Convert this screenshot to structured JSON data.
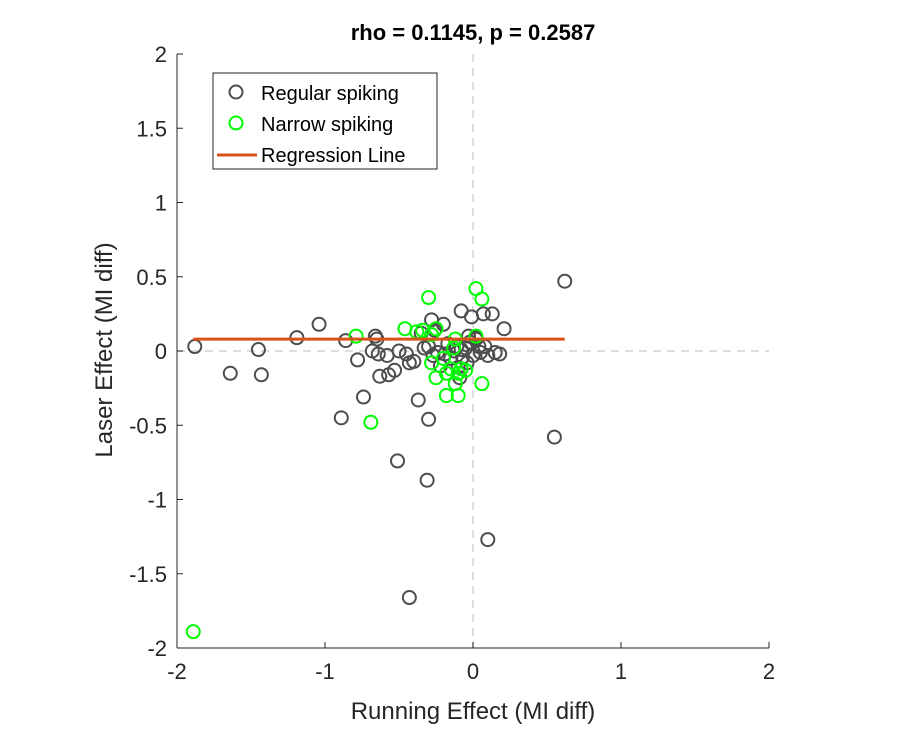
{
  "chart_data": {
    "type": "scatter",
    "title": "rho = 0.1145, p = 0.2587",
    "xlabel": "Running Effect (MI diff)",
    "ylabel": "Laser Effect (MI diff)",
    "xlim": [
      -2,
      2
    ],
    "ylim": [
      -2,
      2
    ],
    "xticks": [
      -2,
      -1,
      0,
      1,
      2
    ],
    "xtick_labels": [
      "-2",
      "-1",
      "0",
      "1",
      "2"
    ],
    "yticks": [
      -2,
      -1.5,
      -1,
      -0.5,
      0,
      0.5,
      1,
      1.5,
      2
    ],
    "ytick_labels": [
      "-2",
      "-1.5",
      "-1",
      "-0.5",
      "0",
      "0.5",
      "1",
      "1.5",
      "2"
    ],
    "grid": false,
    "legend_position": "top-left",
    "reference_lines": [
      {
        "orientation": "vertical",
        "value": 0,
        "style": "dashed",
        "color": "#d0d4d8"
      },
      {
        "orientation": "horizontal",
        "value": 0,
        "style": "dashed",
        "color": "#d0d4d8"
      }
    ],
    "series": [
      {
        "name": "Regular spiking",
        "marker": "open-circle",
        "color": "#4d4d4d",
        "points": [
          [
            -1.88,
            0.03
          ],
          [
            -1.64,
            -0.15
          ],
          [
            -1.45,
            0.01
          ],
          [
            -1.43,
            -0.16
          ],
          [
            -1.19,
            0.09
          ],
          [
            -1.04,
            0.18
          ],
          [
            -0.86,
            0.07
          ],
          [
            -0.78,
            -0.06
          ],
          [
            -0.74,
            -0.31
          ],
          [
            -0.89,
            -0.45
          ],
          [
            -0.68,
            0.0
          ],
          [
            -0.66,
            0.1
          ],
          [
            -0.65,
            0.08
          ],
          [
            -0.64,
            -0.02
          ],
          [
            -0.63,
            -0.17
          ],
          [
            -0.58,
            -0.03
          ],
          [
            -0.57,
            -0.16
          ],
          [
            -0.53,
            -0.13
          ],
          [
            -0.5,
            0.0
          ],
          [
            -0.45,
            -0.02
          ],
          [
            -0.43,
            -0.08
          ],
          [
            -0.4,
            -0.07
          ],
          [
            -0.37,
            -0.33
          ],
          [
            -0.35,
            0.12
          ],
          [
            -0.33,
            0.02
          ],
          [
            -0.3,
            0.03
          ],
          [
            -0.28,
            0.21
          ],
          [
            -0.27,
            -0.03
          ],
          [
            -0.26,
            0.14
          ],
          [
            -0.24,
            -0.01
          ],
          [
            -0.22,
            -0.1
          ],
          [
            -0.2,
            0.18
          ],
          [
            -0.19,
            -0.02
          ],
          [
            -0.17,
            0.05
          ],
          [
            -0.15,
            -0.05
          ],
          [
            -0.13,
            0.0
          ],
          [
            -0.11,
            0.03
          ],
          [
            -0.1,
            -0.11
          ],
          [
            -0.08,
            0.01
          ],
          [
            -0.08,
            0.27
          ],
          [
            -0.07,
            -0.04
          ],
          [
            -0.05,
            0.02
          ],
          [
            -0.04,
            -0.08
          ],
          [
            -0.03,
            0.1
          ],
          [
            -0.02,
            0.06
          ],
          [
            -0.01,
            0.23
          ],
          [
            0.0,
            -0.03
          ],
          [
            0.02,
            0.09
          ],
          [
            0.04,
            0.03
          ],
          [
            0.05,
            -0.01
          ],
          [
            0.07,
            0.25
          ],
          [
            0.08,
            0.03
          ],
          [
            0.1,
            -0.03
          ],
          [
            0.13,
            0.25
          ],
          [
            0.15,
            -0.01
          ],
          [
            0.18,
            -0.02
          ],
          [
            0.21,
            0.15
          ],
          [
            -0.3,
            -0.46
          ],
          [
            -0.51,
            -0.74
          ],
          [
            -0.31,
            -0.87
          ],
          [
            0.1,
            -1.27
          ],
          [
            -0.43,
            -1.66
          ],
          [
            0.55,
            -0.58
          ],
          [
            0.62,
            0.47
          ],
          [
            -0.09,
            -0.18
          ],
          [
            0.02,
            0.08
          ]
        ]
      },
      {
        "name": "Narrow spiking",
        "marker": "open-circle",
        "color": "#00ff00",
        "points": [
          [
            -1.89,
            -1.89
          ],
          [
            -0.69,
            -0.48
          ],
          [
            -0.79,
            0.1
          ],
          [
            -0.46,
            0.15
          ],
          [
            -0.38,
            0.13
          ],
          [
            -0.3,
            0.36
          ],
          [
            -0.34,
            0.14
          ],
          [
            -0.28,
            0.11
          ],
          [
            -0.25,
            0.15
          ],
          [
            -0.28,
            -0.08
          ],
          [
            -0.25,
            -0.18
          ],
          [
            -0.2,
            -0.05
          ],
          [
            -0.18,
            -0.15
          ],
          [
            -0.18,
            -0.3
          ],
          [
            -0.15,
            -0.12
          ],
          [
            -0.13,
            0.02
          ],
          [
            -0.12,
            -0.22
          ],
          [
            -0.1,
            -0.3
          ],
          [
            -0.1,
            -0.15
          ],
          [
            -0.08,
            -0.12
          ],
          [
            -0.05,
            -0.13
          ],
          [
            -0.12,
            0.08
          ],
          [
            0.02,
            0.42
          ],
          [
            0.06,
            0.35
          ],
          [
            0.06,
            -0.22
          ],
          [
            0.02,
            0.1
          ]
        ]
      },
      {
        "name": "Regression Line",
        "type": "line",
        "color": "#d95319",
        "x": [
          -1.89,
          0.62
        ],
        "y": [
          0.08,
          0.08
        ]
      }
    ]
  }
}
